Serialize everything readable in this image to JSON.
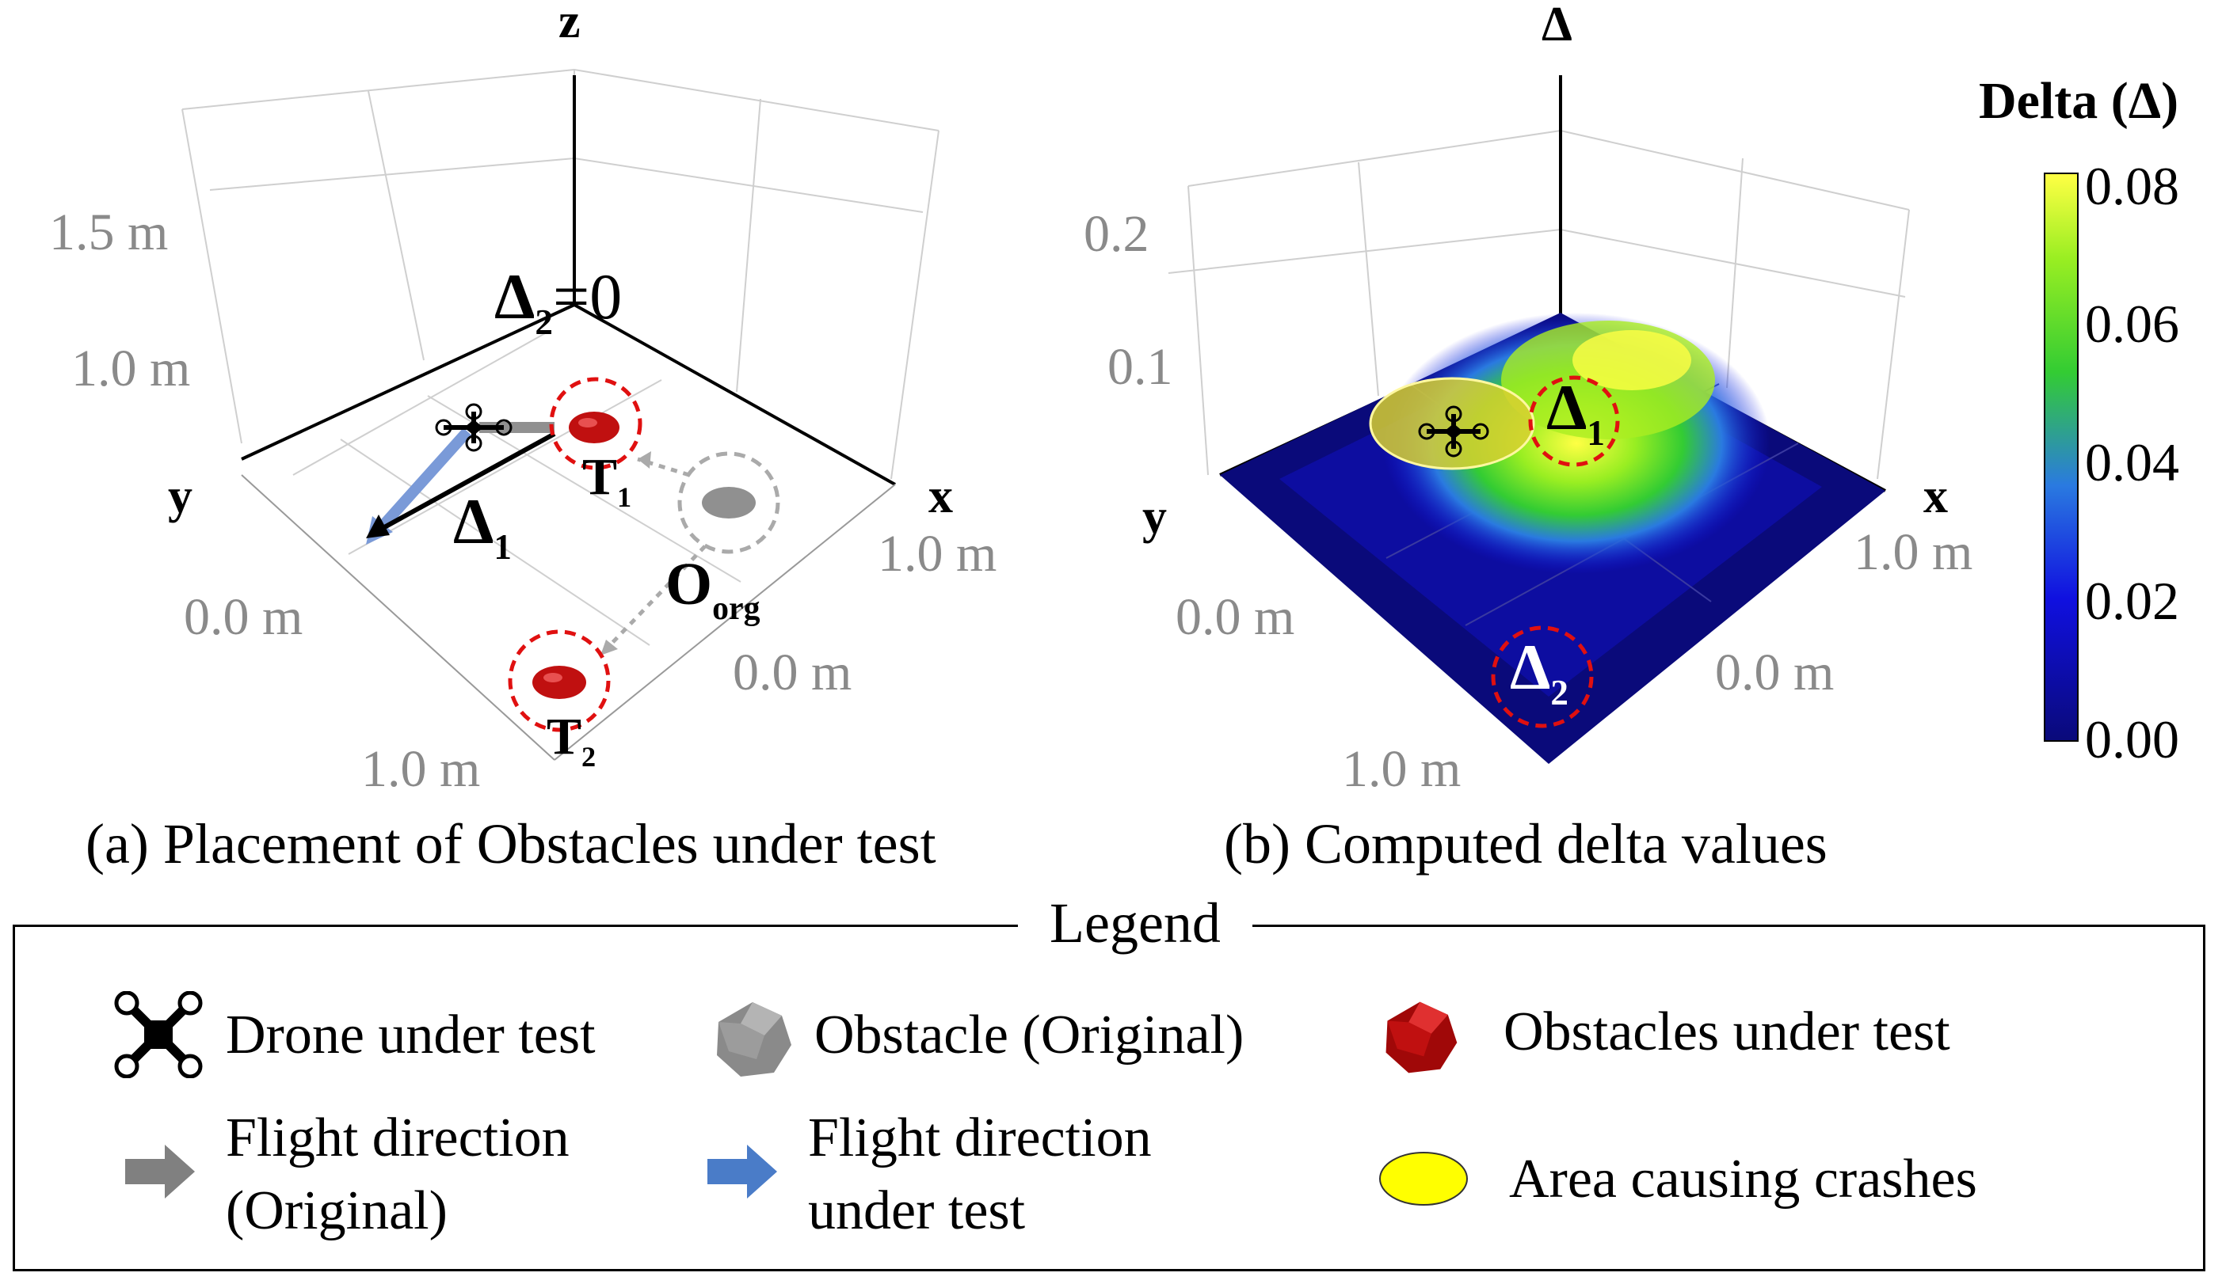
{
  "panel_a": {
    "axis_z": "z",
    "axis_x": "x",
    "axis_y": "y",
    "z_ticks": [
      "1.5 m",
      "1.0 m"
    ],
    "x_ticks": [
      "1.0 m",
      "0.0 m"
    ],
    "y_ticks": [
      "0.0 m",
      "1.0 m"
    ],
    "delta2_label": "=0",
    "delta_symbol": "Δ",
    "delta1_sub": "1",
    "delta2_sub": "2",
    "t1_main": "T",
    "t1_sub": "1",
    "t2_main": "T",
    "t2_sub": "2",
    "org_main": "O",
    "org_sub": "org",
    "caption": "(a) Placement of Obstacles under test"
  },
  "panel_b": {
    "axis_z": "Δ",
    "axis_x": "x",
    "axis_y": "y",
    "z_ticks": [
      "0.2",
      "0.1"
    ],
    "x_ticks": [
      "1.0 m",
      "0.0 m"
    ],
    "y_ticks": [
      "0.0 m",
      "1.0 m"
    ],
    "delta_symbol": "Δ",
    "delta1_sub": "1",
    "delta2_sub": "2",
    "caption": "(b) Computed delta values"
  },
  "colorbar": {
    "title": "Delta (Δ)",
    "ticks": [
      "0.08",
      "0.06",
      "0.04",
      "0.02",
      "0.00"
    ],
    "range": [
      0.0,
      0.08
    ],
    "colors": [
      "#0a0a7a",
      "#1010e0",
      "#2a7ae0",
      "#33cc33",
      "#99ee22",
      "#ffff44"
    ]
  },
  "legend": {
    "title": "Legend",
    "items": {
      "drone": "Drone under test",
      "obstacle_original": "Obstacle (Original)",
      "obstacles_test": "Obstacles under test",
      "flight_original_l1": "Flight direction",
      "flight_original_l2": "(Original)",
      "flight_test_l1": "Flight direction",
      "flight_test_l2": "under test",
      "crash_area": "Area causing crashes"
    }
  },
  "colors": {
    "obstacle_red": "#c01010",
    "obstacle_grey": "#909090",
    "flight_grey": "#808080",
    "flight_blue": "#4a7cc8",
    "crash_yellow": "#ffff00",
    "circle_red": "#e01010"
  }
}
